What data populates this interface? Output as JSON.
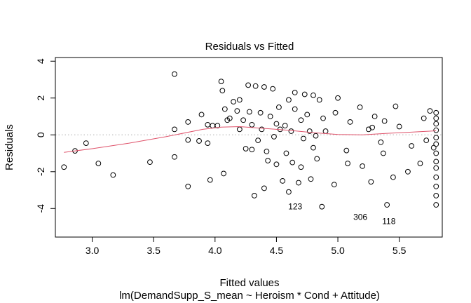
{
  "chart_data": {
    "type": "scatter",
    "title": "Residuals vs Fitted",
    "xlabel": "Fitted values",
    "ylabel": "Residuals",
    "subtitle": "lm(DemandSupp_S_mean ~ Heroism * Cond + Attitude)",
    "xlim": [
      2.7,
      5.85
    ],
    "ylim": [
      -5.55,
      4.2
    ],
    "xticks": [
      3.0,
      3.5,
      4.0,
      4.5,
      5.0,
      5.5
    ],
    "xtick_labels": [
      "3.0",
      "3.5",
      "4.0",
      "4.5",
      "5.0",
      "5.5"
    ],
    "yticks": [
      -4,
      -2,
      0,
      2,
      4
    ],
    "ytick_labels": [
      "-4",
      "-2",
      "0",
      "2",
      "4"
    ],
    "reference_line_y": 0,
    "colors": {
      "smooth": "#DF536B",
      "reference": "#BEBEBE",
      "points": "#000000"
    },
    "labeled_points": [
      {
        "x": 4.75,
        "y": -3.75,
        "label": "123"
      },
      {
        "x": 5.28,
        "y": -4.32,
        "label": "306"
      },
      {
        "x": 5.51,
        "y": -4.55,
        "label": "118"
      }
    ],
    "smooth": {
      "x": [
        2.77,
        3.0,
        3.3,
        3.6,
        3.9,
        4.05,
        4.2,
        4.4,
        4.6,
        4.8,
        5.0,
        5.2,
        5.4,
        5.6,
        5.8
      ],
      "y": [
        -0.95,
        -0.75,
        -0.45,
        -0.1,
        0.3,
        0.42,
        0.45,
        0.35,
        0.25,
        0.12,
        0.02,
        0.0,
        0.08,
        0.15,
        0.22
      ]
    },
    "points": {
      "x": [
        2.77,
        2.86,
        2.95,
        3.05,
        3.17,
        3.47,
        3.67,
        3.67,
        3.67,
        3.78,
        3.78,
        3.78,
        3.87,
        3.89,
        3.94,
        3.94,
        3.96,
        3.98,
        4.02,
        4.05,
        4.06,
        4.07,
        4.08,
        4.1,
        4.12,
        4.15,
        4.18,
        4.2,
        4.2,
        4.23,
        4.25,
        4.27,
        4.28,
        4.3,
        4.3,
        4.32,
        4.33,
        4.35,
        4.37,
        4.38,
        4.4,
        4.4,
        4.42,
        4.43,
        4.45,
        4.47,
        4.48,
        4.5,
        4.5,
        4.52,
        4.53,
        4.55,
        4.57,
        4.58,
        4.6,
        4.6,
        4.62,
        4.63,
        4.65,
        4.65,
        4.68,
        4.7,
        4.7,
        4.72,
        4.73,
        4.75,
        4.77,
        4.78,
        4.8,
        4.8,
        4.82,
        4.83,
        4.85,
        4.87,
        4.88,
        4.9,
        4.97,
        4.98,
        5.0,
        5.07,
        5.08,
        5.1,
        5.18,
        5.2,
        5.25,
        5.27,
        5.28,
        5.3,
        5.35,
        5.37,
        5.38,
        5.4,
        5.45,
        5.47,
        5.5,
        5.57,
        5.6,
        5.67,
        5.7,
        5.72,
        5.75,
        5.78,
        5.8,
        5.8,
        5.8,
        5.8,
        5.8,
        5.8,
        5.8,
        5.8,
        5.8,
        5.8,
        5.8,
        5.8,
        5.8
      ],
      "y": [
        -1.75,
        -0.87,
        -0.45,
        -1.55,
        -2.18,
        -1.48,
        3.3,
        0.3,
        -1.2,
        0.7,
        -0.28,
        -2.8,
        -0.33,
        1.1,
        0.55,
        -0.45,
        -2.45,
        0.5,
        0.5,
        2.9,
        2.4,
        -2.1,
        1.4,
        0.8,
        0.9,
        1.8,
        1.3,
        0.3,
        1.9,
        0.8,
        -0.75,
        2.7,
        1.25,
        0.55,
        -0.8,
        -3.3,
        2.65,
        -0.3,
        1.2,
        0.3,
        -2.9,
        2.6,
        -0.9,
        -1.4,
        1.0,
        2.5,
        -0.1,
        0.6,
        -1.6,
        1.5,
        0.3,
        -2.5,
        0.5,
        -1.0,
        1.9,
        -3.1,
        0.2,
        -1.5,
        1.4,
        2.3,
        -2.6,
        0.8,
        -1.75,
        -0.2,
        2.2,
        1.1,
        0.2,
        -2.4,
        -0.7,
        2.15,
        -0.05,
        -1.3,
        1.9,
        -3.9,
        0.9,
        0.2,
        -2.7,
        1.2,
        2.0,
        -0.85,
        -1.55,
        0.7,
        1.5,
        -1.7,
        0.3,
        -2.55,
        0.4,
        1.0,
        -0.4,
        -1.0,
        0.75,
        -3.8,
        -2.3,
        1.55,
        0.45,
        -2.0,
        -0.6,
        -1.55,
        0.9,
        -0.3,
        1.3,
        -0.7,
        1.2,
        0.9,
        0.6,
        0.25,
        -0.15,
        -0.5,
        -1.0,
        -1.45,
        -1.8,
        -2.3,
        -2.8,
        -3.3,
        -3.8
      ]
    }
  }
}
